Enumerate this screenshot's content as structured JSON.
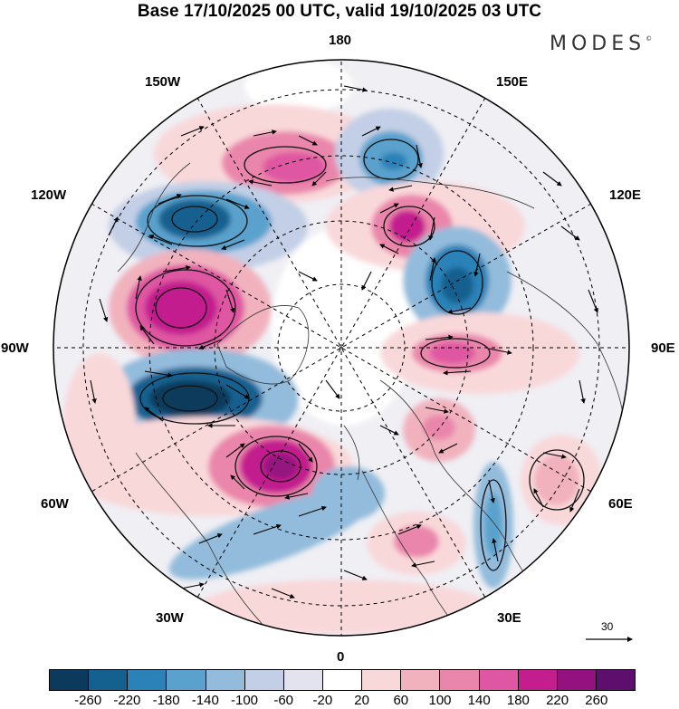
{
  "title": "Base 17/10/2025 00 UTC, valid 19/10/2025 03 UTC",
  "logo": {
    "text": "MODES",
    "mark": "©"
  },
  "longitude_labels": {
    "top": "180",
    "bottom": "0",
    "left": "90W",
    "right": "90E",
    "upper_left": "150W",
    "upper_right": "150E",
    "mid_upper_left": "120W",
    "mid_upper_right": "120E",
    "mid_lower_left": "60W",
    "mid_lower_right": "60E",
    "lower_left": "30W",
    "lower_right": "30E"
  },
  "reference_vector": {
    "value": "30",
    "icon": "arrow-right-icon"
  },
  "colorbar": {
    "colors": [
      "#0b3a5c",
      "#14608f",
      "#2b82b8",
      "#5aa2cd",
      "#93bcdc",
      "#c2cfe6",
      "#e3e3f0",
      "#ffffff",
      "#f9d8da",
      "#f1b2be",
      "#ea86ab",
      "#df56a2",
      "#c31d8e",
      "#94127f",
      "#5e0f6d"
    ],
    "ticks": [
      "-260",
      "-220",
      "-180",
      "-140",
      "-100",
      "-60",
      "-20",
      "20",
      "60",
      "100",
      "140",
      "180",
      "220",
      "260"
    ]
  }
}
